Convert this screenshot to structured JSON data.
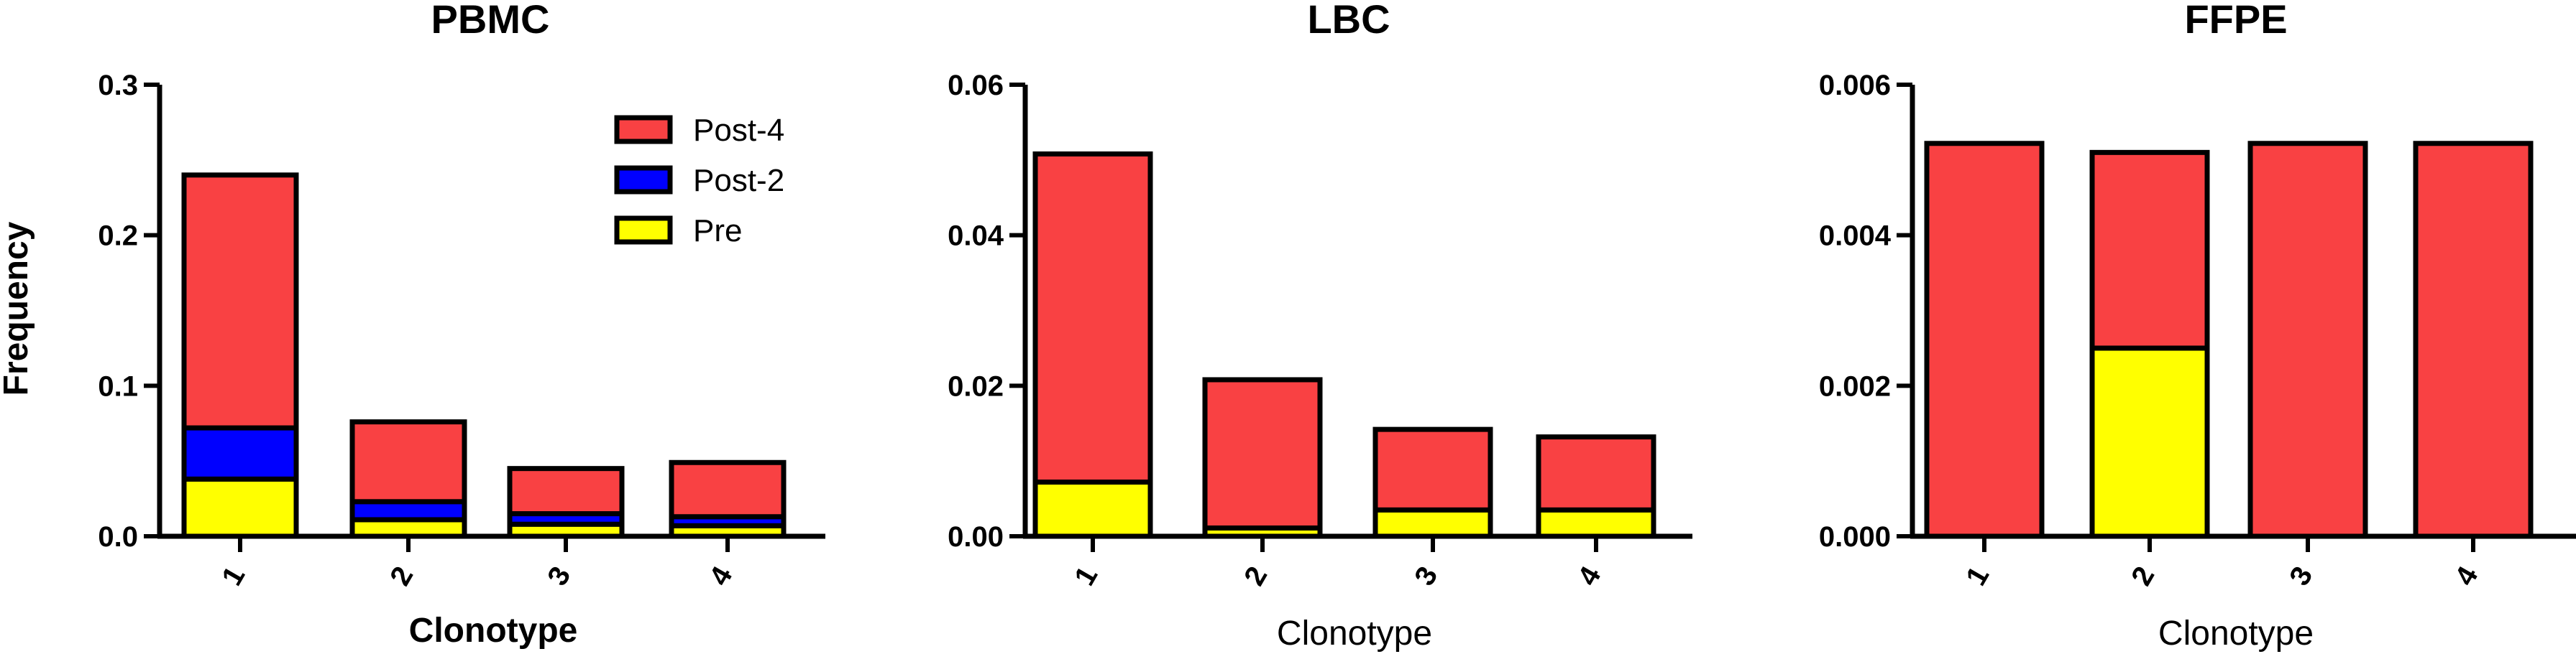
{
  "chart_data": [
    {
      "type": "bar",
      "stacked": true,
      "title": "PBMC",
      "xlabel": "Clonotype",
      "ylabel": "Frequency",
      "categories": [
        "1",
        "2",
        "3",
        "4"
      ],
      "yticks": [
        "0.0",
        "0.1",
        "0.2",
        "0.3"
      ],
      "ylim": [
        0,
        0.3
      ],
      "legend": "top-right",
      "series": [
        {
          "name": "Pre",
          "color": "#ffff00",
          "values": [
            0.038,
            0.011,
            0.008,
            0.007
          ]
        },
        {
          "name": "Post-2",
          "color": "#0000ff",
          "values": [
            0.034,
            0.012,
            0.007,
            0.006
          ]
        },
        {
          "name": "Post-4",
          "color": "#f94143",
          "values": [
            0.168,
            0.053,
            0.03,
            0.036
          ]
        }
      ]
    },
    {
      "type": "bar",
      "stacked": true,
      "title": "LBC",
      "xlabel": "Clonotype",
      "ylabel": "",
      "categories": [
        "1",
        "2",
        "3",
        "4"
      ],
      "yticks": [
        "0.00",
        "0.02",
        "0.04",
        "0.06"
      ],
      "ylim": [
        0,
        0.06
      ],
      "series": [
        {
          "name": "Pre",
          "color": "#ffff00",
          "values": [
            0.0072,
            0.0011,
            0.0035,
            0.0035
          ]
        },
        {
          "name": "Post-2",
          "color": "#0000ff",
          "values": [
            0,
            0,
            0,
            0
          ]
        },
        {
          "name": "Post-4",
          "color": "#f94143",
          "values": [
            0.0436,
            0.0197,
            0.0107,
            0.0097
          ]
        }
      ]
    },
    {
      "type": "bar",
      "stacked": true,
      "title": "FFPE",
      "xlabel": "Clonotype",
      "ylabel": "",
      "categories": [
        "1",
        "2",
        "3",
        "4"
      ],
      "yticks": [
        "0.000",
        "0.002",
        "0.004",
        "0.006"
      ],
      "ylim": [
        0,
        0.006
      ],
      "series": [
        {
          "name": "Pre",
          "color": "#ffff00",
          "values": [
            0,
            0.0025,
            0,
            0
          ]
        },
        {
          "name": "Post-2",
          "color": "#0000ff",
          "values": [
            0,
            0,
            0,
            0
          ]
        },
        {
          "name": "Post-4",
          "color": "#f94143",
          "values": [
            0.00522,
            0.0026,
            0.00522,
            0.00522
          ]
        }
      ]
    }
  ]
}
